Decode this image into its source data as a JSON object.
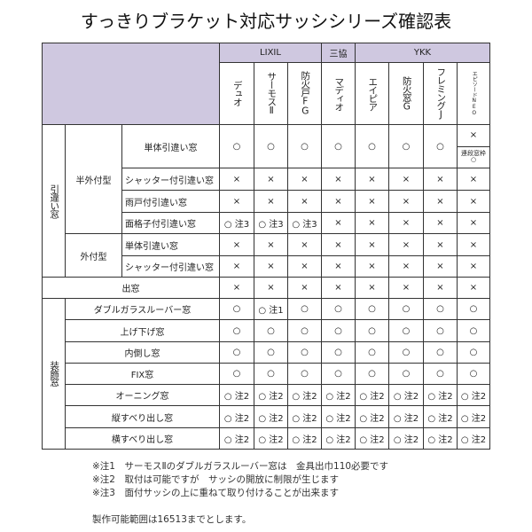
{
  "title": "すっきりブラケット対応サッシシリーズ確認表",
  "makers": [
    {
      "name": "LIXIL",
      "span": 3
    },
    {
      "name": "三協",
      "span": 1
    },
    {
      "name": "YKK",
      "span": 4
    }
  ],
  "products": [
    "デュオ",
    "サーモスⅡ",
    "防火戸FG",
    "マディオ",
    "エイピア",
    "防火窓G",
    "フレミングJ",
    "エピソードNEO"
  ],
  "groups": {
    "sliding": "引違い窓",
    "half": "半外付型",
    "outer": "外付型",
    "bay": "出窓",
    "deco": "装飾窓"
  },
  "rows": [
    {
      "label": "単体引違い窓",
      "cells": [
        "○",
        "○",
        "○",
        "○",
        "○",
        "○",
        "○"
      ],
      "split_top": "×",
      "split_bottom_label": "連段窓枠",
      "split_bottom": "○"
    },
    {
      "label": "シャッター付引違い窓",
      "cells": [
        "×",
        "×",
        "×",
        "×",
        "×",
        "×",
        "×",
        "×"
      ]
    },
    {
      "label": "雨戸付引違い窓",
      "cells": [
        "×",
        "×",
        "×",
        "×",
        "×",
        "×",
        "×",
        "×"
      ]
    },
    {
      "label": "面格子付引違い窓",
      "cells": [
        "○ 注3",
        "○ 注3",
        "○ 注3",
        "×",
        "×",
        "×",
        "×",
        "×"
      ]
    },
    {
      "label": "単体引違い窓",
      "cells": [
        "×",
        "×",
        "×",
        "×",
        "×",
        "×",
        "×",
        "×"
      ]
    },
    {
      "label": "シャッター付引違い窓",
      "cells": [
        "×",
        "×",
        "×",
        "×",
        "×",
        "×",
        "×",
        "×"
      ]
    },
    {
      "label": "出窓",
      "cells": [
        "×",
        "×",
        "×",
        "×",
        "×",
        "×",
        "×",
        "×"
      ]
    },
    {
      "label": "ダブルガラスルーバー窓",
      "cells": [
        "○",
        "○ 注1",
        "○",
        "○",
        "○",
        "○",
        "○",
        "○"
      ]
    },
    {
      "label": "上げ下げ窓",
      "cells": [
        "○",
        "○",
        "○",
        "○",
        "○",
        "○",
        "○",
        "○"
      ]
    },
    {
      "label": "内倒し窓",
      "cells": [
        "○",
        "○",
        "○",
        "○",
        "○",
        "○",
        "○",
        "○"
      ]
    },
    {
      "label": "FIX窓",
      "cells": [
        "○",
        "○",
        "○",
        "○",
        "○",
        "○",
        "○",
        "○"
      ]
    },
    {
      "label": "オーニング窓",
      "cells": [
        "○ 注2",
        "○ 注2",
        "○ 注2",
        "○ 注2",
        "○ 注2",
        "○ 注2",
        "○ 注2",
        "○ 注2"
      ]
    },
    {
      "label": "縦すべり出し窓",
      "cells": [
        "○ 注2",
        "○ 注2",
        "○ 注2",
        "○ 注2",
        "○ 注2",
        "○ 注2",
        "○ 注2",
        "○ 注2"
      ]
    },
    {
      "label": "横すべり出し窓",
      "cells": [
        "○ 注2",
        "○ 注2",
        "○ 注2",
        "○ 注2",
        "○ 注2",
        "○ 注2",
        "○ 注2",
        "○ 注2"
      ]
    }
  ],
  "notes": [
    "※注1　サーモスⅡのダブルガラスルーバー窓は　金具出巾110必要です",
    "※注2　取付は可能ですが　サッシの開放に制限が生じます",
    "※注3　面付サッシの上に重ねて取り付けることが出来ます"
  ],
  "range": "製作可能範囲は16513までとします。"
}
